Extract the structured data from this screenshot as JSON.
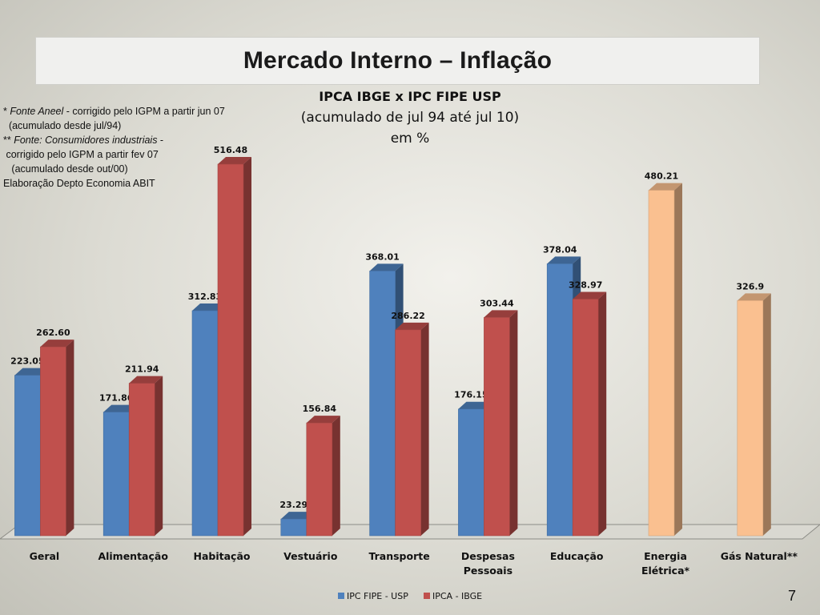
{
  "slide": {
    "title": "Mercado Interno – Inflação",
    "page_number": "7"
  },
  "notes": {
    "line1_mark": "* ",
    "line1_source": "Fonte Aneel",
    "line1_rest": " - corrigido pelo IGPM a partir jun 07",
    "line2": "  (acumulado desde jul/94)",
    "line3_mark": "** ",
    "line3_source": "Fonte: Consumidores industriais",
    "line3_rest": " -",
    "line4": " corrigido pelo IGPM a partir fev 07",
    "line5": "   (acumulado desde out/00)",
    "line6": "Elaboração Depto Economia ABIT"
  },
  "chart_data": {
    "type": "bar",
    "title": "IPCA IBGE x IPC FIPE USP",
    "subtitle_line1": "(acumulado de jul 94 até jul 10)",
    "subtitle_line2": "em %",
    "categories": [
      [
        "Geral"
      ],
      [
        "Alimentação"
      ],
      [
        "Habitação"
      ],
      [
        "Vestuário"
      ],
      [
        "Transporte"
      ],
      [
        "Despesas",
        "Pessoais"
      ],
      [
        "Educação"
      ],
      [
        "Energia",
        "Elétrica*"
      ],
      [
        "Gás Natural**"
      ]
    ],
    "series": [
      {
        "name": "IPC FIPE - USP",
        "color": "#4f81bd",
        "values": [
          223.05,
          171.86,
          312.83,
          23.29,
          368.01,
          176.15,
          378.04,
          null,
          null
        ],
        "labels": [
          "223.05",
          "171.86",
          "312.83",
          "23.29",
          "368.01",
          "176.15",
          "378.04",
          null,
          null
        ]
      },
      {
        "name": "IPCA - IBGE",
        "color": "#c0504d",
        "values": [
          262.6,
          211.94,
          516.48,
          156.84,
          286.22,
          303.44,
          328.97,
          null,
          null
        ],
        "labels": [
          "262.60",
          "211.94",
          "516.48",
          "156.84",
          "286.22",
          "303.44",
          "328.97",
          null,
          null
        ]
      },
      {
        "name": "",
        "color": "#fac090",
        "values": [
          null,
          null,
          null,
          null,
          null,
          null,
          null,
          480.21,
          326.9
        ],
        "labels": [
          null,
          null,
          null,
          null,
          null,
          null,
          null,
          "480.21",
          "326.9"
        ]
      }
    ],
    "legend_entries": [
      "IPC FIPE - USP",
      "IPCA - IBGE"
    ],
    "legend_placement": "bottom",
    "ylim": [
      0,
      516.48
    ],
    "grid": false,
    "style": "3d"
  }
}
